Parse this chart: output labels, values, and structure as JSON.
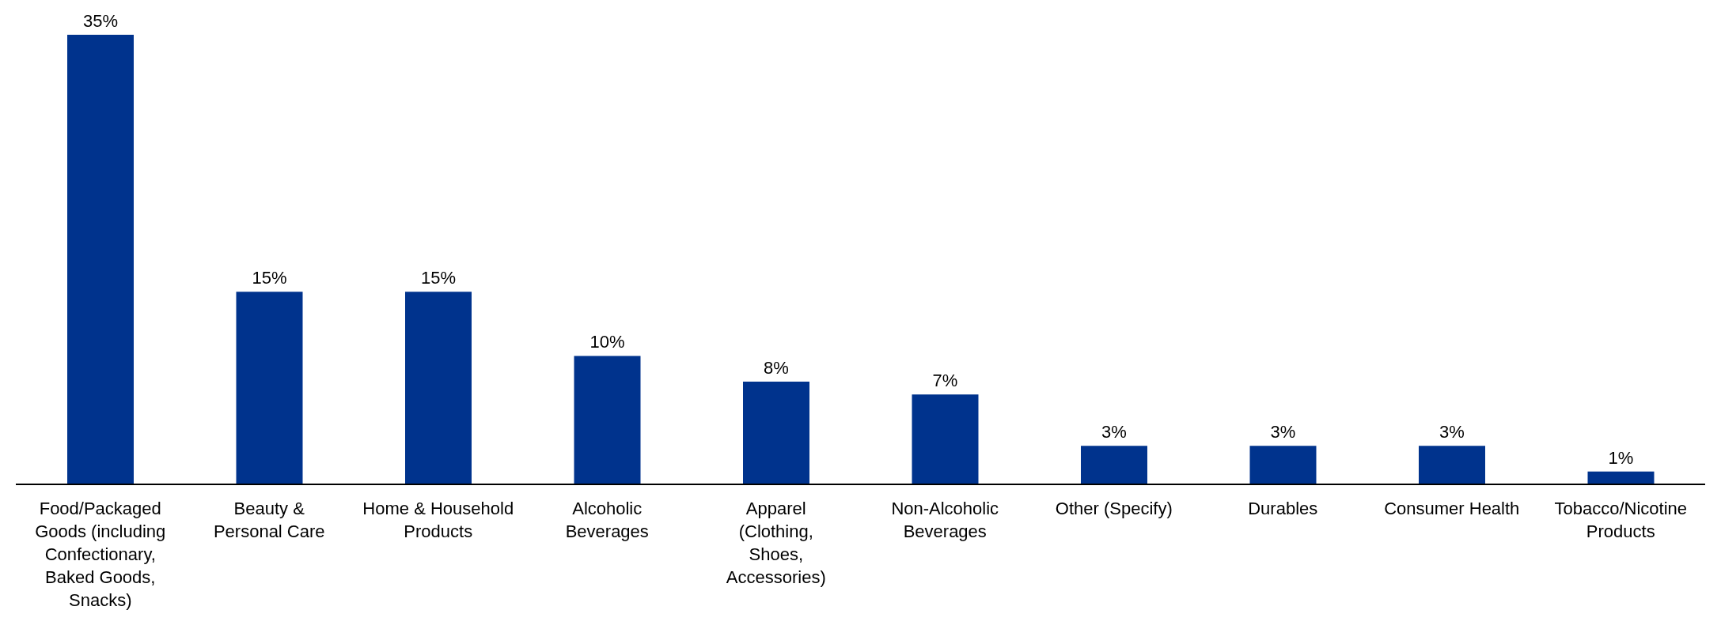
{
  "chart_data": {
    "type": "bar",
    "categories": [
      "Food/Packaged Goods (including Confectionary, Baked Goods, Snacks)",
      "Beauty & Personal Care",
      "Home & Household Products",
      "Alcoholic Beverages",
      "Apparel (Clothing, Shoes, Accessories)",
      "Non-Alcoholic Beverages",
      "Other (Specify)",
      "Durables",
      "Consumer Health",
      "Tobacco/Nicotine Products"
    ],
    "values": [
      35,
      15,
      15,
      10,
      8,
      7,
      3,
      3,
      3,
      1
    ],
    "value_labels": [
      "35%",
      "15%",
      "15%",
      "10%",
      "8%",
      "7%",
      "3%",
      "3%",
      "3%",
      "1%"
    ],
    "color": "#00338d",
    "grid": false,
    "legend": false
  }
}
